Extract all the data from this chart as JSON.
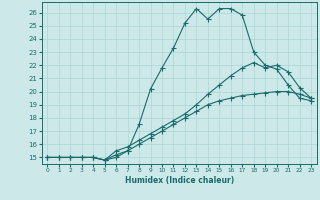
{
  "xlabel": "Humidex (Indice chaleur)",
  "xlim": [
    -0.5,
    23.5
  ],
  "ylim": [
    14.5,
    26.8
  ],
  "yticks": [
    15,
    16,
    17,
    18,
    19,
    20,
    21,
    22,
    23,
    24,
    25,
    26
  ],
  "xticks": [
    0,
    1,
    2,
    3,
    4,
    5,
    6,
    7,
    8,
    9,
    10,
    11,
    12,
    13,
    14,
    15,
    16,
    17,
    18,
    19,
    20,
    21,
    22,
    23
  ],
  "bg_color": "#cce8e8",
  "grid_color": "#aad4d4",
  "line_color": "#1a6b6b",
  "line1_x": [
    0,
    1,
    2,
    3,
    4,
    5,
    6,
    7,
    8,
    9,
    10,
    11,
    12,
    13,
    14,
    15,
    16,
    17,
    18,
    19,
    20,
    21,
    22,
    23
  ],
  "line1_y": [
    15,
    15,
    15,
    15,
    15,
    14.8,
    15.2,
    15.5,
    17.5,
    20.2,
    21.8,
    23.3,
    25.2,
    26.3,
    25.5,
    26.3,
    26.3,
    25.8,
    23.0,
    22.0,
    21.7,
    20.5,
    19.5,
    19.3
  ],
  "line2_x": [
    0,
    1,
    2,
    3,
    4,
    5,
    6,
    7,
    8,
    9,
    10,
    11,
    12,
    13,
    14,
    15,
    16,
    17,
    18,
    19,
    20,
    21,
    22,
    23
  ],
  "line2_y": [
    15,
    15,
    15,
    15,
    15,
    14.8,
    15.5,
    15.8,
    16.3,
    16.8,
    17.3,
    17.8,
    18.3,
    19.0,
    19.8,
    20.5,
    21.2,
    21.8,
    22.2,
    21.8,
    22.0,
    21.5,
    20.3,
    19.5
  ],
  "line3_x": [
    0,
    1,
    2,
    3,
    4,
    5,
    6,
    7,
    8,
    9,
    10,
    11,
    12,
    13,
    14,
    15,
    16,
    17,
    18,
    19,
    20,
    21,
    22,
    23
  ],
  "line3_y": [
    15,
    15,
    15,
    15,
    15,
    14.8,
    15.0,
    15.5,
    16.0,
    16.5,
    17.0,
    17.5,
    18.0,
    18.5,
    19.0,
    19.3,
    19.5,
    19.7,
    19.8,
    19.9,
    20.0,
    20.0,
    19.8,
    19.5
  ]
}
